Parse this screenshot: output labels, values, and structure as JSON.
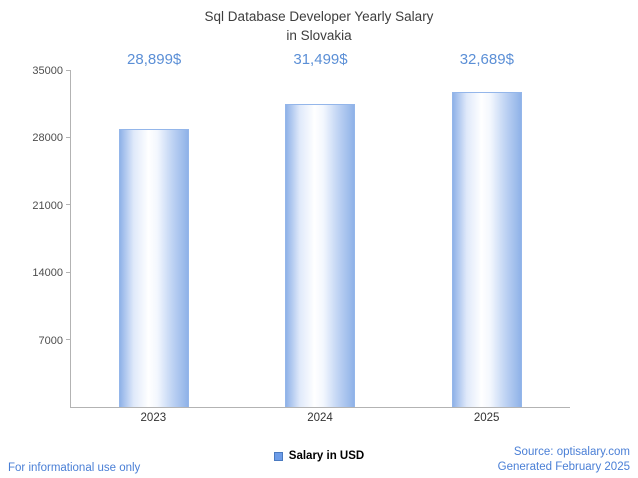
{
  "chart_data": {
    "type": "bar",
    "title": "Sql Database Developer Yearly Salary in Slovakia",
    "title_lines": [
      "Sql Database Developer Yearly Salary",
      "in Slovakia"
    ],
    "categories": [
      "2023",
      "2024",
      "2025"
    ],
    "values": [
      28899,
      31499,
      32689
    ],
    "value_labels": [
      "28,899$",
      "31,499$",
      "32,689$"
    ],
    "ylim": [
      0,
      35000
    ],
    "yticks": [
      7000,
      14000,
      21000,
      28000,
      35000
    ],
    "grid": false,
    "legend_position": "bottom",
    "legend": [
      {
        "label": "Salary in USD",
        "color": "#6d9ce8"
      }
    ]
  },
  "footer": {
    "disclaimer": "For informational use only",
    "source": "Source: optisalary.com",
    "generated": "Generated February 2025"
  },
  "colors": {
    "value_label": "#5b8fd6",
    "footer_text": "#4a7fd6",
    "bar_edge": "#94b6ea",
    "bar_fill_light": "#ffffff",
    "bar_fill_dark": "#8fb2e8",
    "legend_swatch": "#6d9ce8",
    "axis": "#b3b3b3",
    "title": "#3d3d3d"
  }
}
